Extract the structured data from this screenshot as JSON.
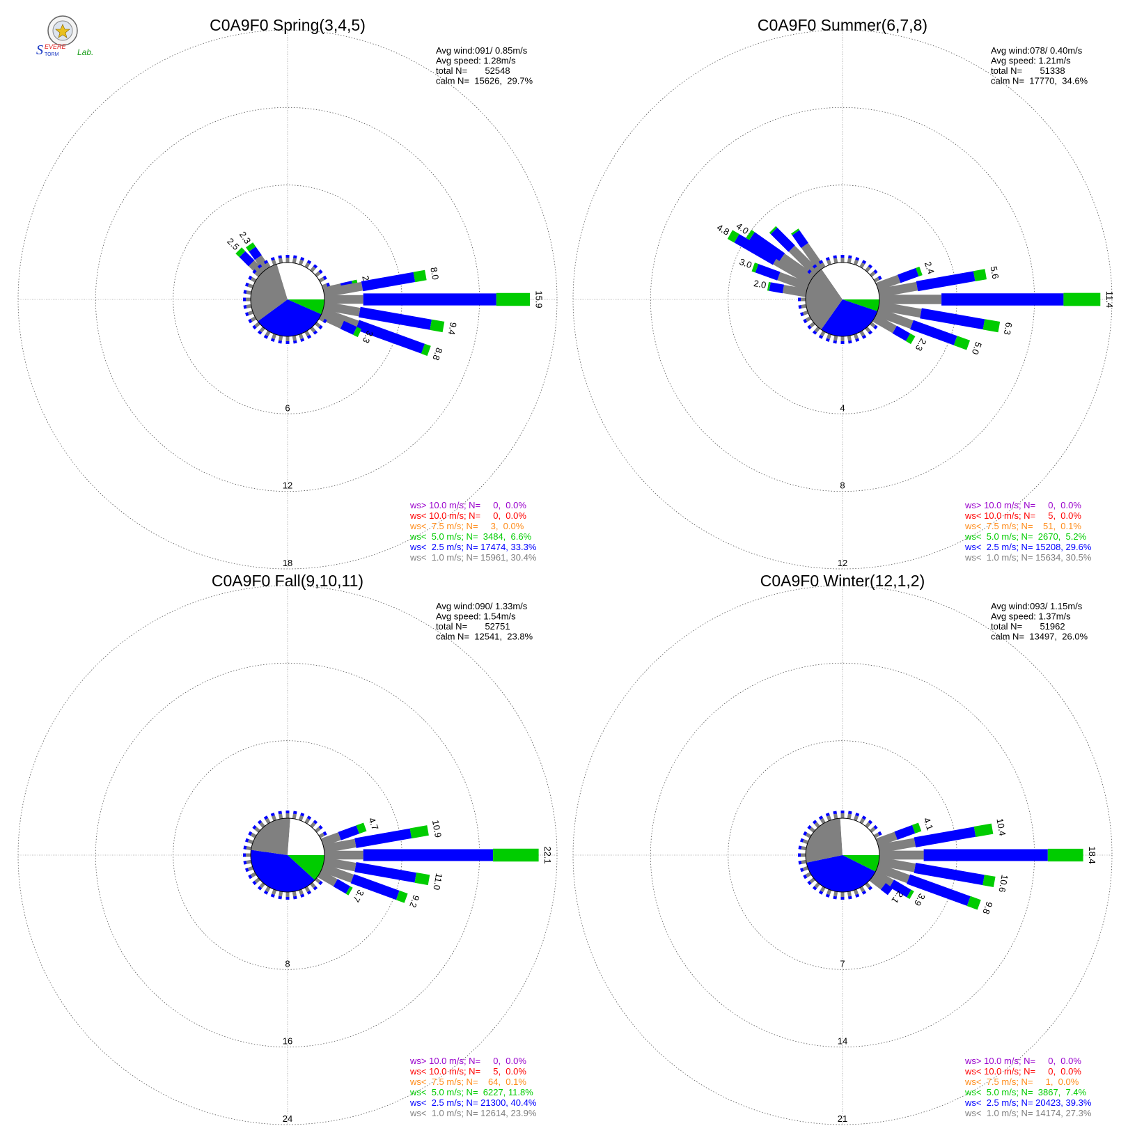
{
  "logo": {
    "text_s": "S",
    "text_severe": "EVERE",
    "text_storm": "TORM",
    "text_lab": "Lab."
  },
  "colors": {
    "calm": "#808080",
    "ws_lt_1": "#808080",
    "ws_lt_2_5": "#0000ff",
    "ws_lt_5": "#00cc00",
    "ws_lt_7_5": "#ff8c1a",
    "ws_lt_10": "#ff0000",
    "ws_gt_10": "#9900cc"
  },
  "chart_data": [
    {
      "type": "windrose",
      "title": "C0A9F0 Spring(3,4,5)",
      "ring_labels": [
        "6",
        "12",
        "18"
      ],
      "rmax": 18,
      "stats": {
        "avg_wind": "Avg wind:091/ 0.85m/s",
        "avg_speed": "Avg speed: 1.28m/s",
        "total": "total N=       52548",
        "calm": "calm N=  15626,  29.7%"
      },
      "calm_pie": {
        "green_pct": 6.6,
        "blue_pct": 33.3,
        "gray_pct": 30.4,
        "calm_pct": 29.7
      },
      "petals": [
        {
          "dir": 77.5,
          "gray": 1.4,
          "blue": 0.9,
          "green": 0.4,
          "label": "2.7"
        },
        {
          "dir": 80,
          "gray": 3.0,
          "blue": 4.1,
          "green": 0.9,
          "label": "8.0"
        },
        {
          "dir": 90,
          "gray": 3.0,
          "blue": 10.3,
          "green": 2.6,
          "label": "15.9"
        },
        {
          "dir": 100,
          "gray": 2.8,
          "blue": 5.6,
          "green": 1.0,
          "label": "9.4"
        },
        {
          "dir": 110,
          "gray": 2.9,
          "blue": 5.4,
          "green": 0.5,
          "label": "8.8"
        },
        {
          "dir": 115,
          "gray": 1.8,
          "blue": 1.1,
          "green": 0.4,
          "label": "3.3"
        },
        {
          "dir": 315,
          "gray": 1.1,
          "blue": 1.0,
          "green": 0.4,
          "label": "2.5"
        },
        {
          "dir": 325,
          "gray": 1.1,
          "blue": 0.8,
          "green": 0.4,
          "label": "2.3"
        }
      ],
      "legend": [
        {
          "key": "ws_gt_10",
          "text": "ws> 10.0 m/s; N=     0,  0.0%"
        },
        {
          "key": "ws_lt_10",
          "text": "ws< 10.0 m/s; N=     0,  0.0%"
        },
        {
          "key": "ws_lt_7_5",
          "text": "ws<  7.5 m/s; N=     3,  0.0%"
        },
        {
          "key": "ws_lt_5",
          "text": "ws<  5.0 m/s; N=  3484,  6.6%"
        },
        {
          "key": "ws_lt_2_5",
          "text": "ws<  2.5 m/s; N= 17474, 33.3%"
        },
        {
          "key": "ws_lt_1",
          "text": "ws<  1.0 m/s; N= 15961, 30.4%"
        }
      ]
    },
    {
      "type": "windrose",
      "title": "C0A9F0 Summer(6,7,8)",
      "ring_labels": [
        "4",
        "8",
        "12"
      ],
      "rmax": 12,
      "stats": {
        "avg_wind": "Avg wind:078/ 0.40m/s",
        "avg_speed": "Avg speed: 1.21m/s",
        "total": "total N=       51338",
        "calm": "calm N=  17770,  34.6%"
      },
      "calm_pie": {
        "green_pct": 5.2,
        "blue_pct": 29.6,
        "gray_pct": 30.5,
        "calm_pct": 34.6
      },
      "petals": [
        {
          "dir": 70,
          "gray": 1.2,
          "blue": 1.0,
          "green": 0.2,
          "label": "2.4"
        },
        {
          "dir": 80,
          "gray": 2.0,
          "blue": 3.0,
          "green": 0.6,
          "label": "5.6"
        },
        {
          "dir": 90,
          "gray": 3.2,
          "blue": 6.3,
          "green": 1.9,
          "label": "11.4"
        },
        {
          "dir": 100,
          "gray": 2.2,
          "blue": 3.3,
          "green": 0.8,
          "label": "6.3"
        },
        {
          "dir": 110,
          "gray": 1.9,
          "blue": 2.4,
          "green": 0.7,
          "label": "5.0"
        },
        {
          "dir": 120,
          "gray": 1.2,
          "blue": 0.8,
          "green": 0.3,
          "label": "2.3"
        },
        {
          "dir": 280,
          "gray": 1.2,
          "blue": 0.7,
          "green": 0.1,
          "label": "2.0"
        },
        {
          "dir": 290,
          "gray": 1.6,
          "blue": 1.2,
          "green": 0.2,
          "label": "3.0"
        },
        {
          "dir": 300,
          "gray": 2.1,
          "blue": 2.3,
          "green": 0.4,
          "label": "4.8"
        },
        {
          "dir": 305,
          "gray": 1.9,
          "blue": 1.9,
          "green": 0.2,
          "label": "4.0"
        },
        {
          "dir": 315,
          "gray": 1.8,
          "blue": 1.3,
          "green": 0.1,
          "label": ""
        },
        {
          "dir": 325,
          "gray": 1.5,
          "blue": 0.8,
          "green": 0.1,
          "label": ""
        }
      ],
      "legend": [
        {
          "key": "ws_gt_10",
          "text": "ws> 10.0 m/s; N=     0,  0.0%"
        },
        {
          "key": "ws_lt_10",
          "text": "ws< 10.0 m/s; N=     5,  0.0%"
        },
        {
          "key": "ws_lt_7_5",
          "text": "ws<  7.5 m/s; N=    51,  0.1%"
        },
        {
          "key": "ws_lt_5",
          "text": "ws<  5.0 m/s; N=  2670,  5.2%"
        },
        {
          "key": "ws_lt_2_5",
          "text": "ws<  2.5 m/s; N= 15208, 29.6%"
        },
        {
          "key": "ws_lt_1",
          "text": "ws<  1.0 m/s; N= 15634, 30.5%"
        }
      ]
    },
    {
      "type": "windrose",
      "title": "C0A9F0 Fall(9,10,11)",
      "ring_labels": [
        "8",
        "16",
        "24"
      ],
      "rmax": 24,
      "stats": {
        "avg_wind": "Avg wind:090/ 1.33m/s",
        "avg_speed": "Avg speed: 1.54m/s",
        "total": "total N=       52751",
        "calm": "calm N=  12541,  23.8%"
      },
      "calm_pie": {
        "green_pct": 11.8,
        "blue_pct": 40.4,
        "gray_pct": 23.9,
        "calm_pct": 23.8
      },
      "petals": [
        {
          "dir": 70,
          "gray": 1.9,
          "blue": 2.0,
          "green": 0.8,
          "label": "4.7"
        },
        {
          "dir": 80,
          "gray": 3.3,
          "blue": 5.8,
          "green": 1.8,
          "label": "10.9"
        },
        {
          "dir": 90,
          "gray": 4.0,
          "blue": 13.4,
          "green": 4.7,
          "label": "22.1"
        },
        {
          "dir": 100,
          "gray": 3.3,
          "blue": 6.3,
          "green": 1.4,
          "label": "11.0"
        },
        {
          "dir": 110,
          "gray": 3.3,
          "blue": 5.0,
          "green": 0.9,
          "label": "9.2"
        },
        {
          "dir": 120,
          "gray": 1.9,
          "blue": 1.5,
          "green": 0.3,
          "label": "3.7"
        }
      ],
      "legend": [
        {
          "key": "ws_gt_10",
          "text": "ws> 10.0 m/s; N=     0,  0.0%"
        },
        {
          "key": "ws_lt_10",
          "text": "ws< 10.0 m/s; N=     5,  0.0%"
        },
        {
          "key": "ws_lt_7_5",
          "text": "ws<  7.5 m/s; N=    64,  0.1%"
        },
        {
          "key": "ws_lt_5",
          "text": "ws<  5.0 m/s; N=  6227, 11.8%"
        },
        {
          "key": "ws_lt_2_5",
          "text": "ws<  2.5 m/s; N= 21300, 40.4%"
        },
        {
          "key": "ws_lt_1",
          "text": "ws<  1.0 m/s; N= 12614, 23.9%"
        }
      ]
    },
    {
      "type": "windrose",
      "title": "C0A9F0 Winter(12,1,2)",
      "ring_labels": [
        "7",
        "14",
        "21"
      ],
      "rmax": 21,
      "stats": {
        "avg_wind": "Avg wind:093/ 1.15m/s",
        "avg_speed": "Avg speed: 1.37m/s",
        "total": "total N=       51962",
        "calm": "calm N=  13497,  26.0%"
      },
      "calm_pie": {
        "green_pct": 7.4,
        "blue_pct": 39.3,
        "gray_pct": 27.3,
        "calm_pct": 26.0
      },
      "petals": [
        {
          "dir": 70,
          "gray": 1.8,
          "blue": 1.7,
          "green": 0.6,
          "label": "4.1"
        },
        {
          "dir": 80,
          "gray": 3.3,
          "blue": 5.5,
          "green": 1.6,
          "label": "10.4"
        },
        {
          "dir": 90,
          "gray": 4.0,
          "blue": 11.2,
          "green": 3.2,
          "label": "18.4"
        },
        {
          "dir": 100,
          "gray": 3.3,
          "blue": 6.3,
          "green": 1.0,
          "label": "10.6"
        },
        {
          "dir": 110,
          "gray": 3.0,
          "blue": 5.8,
          "green": 1.0,
          "label": "9.8"
        },
        {
          "dir": 120,
          "gray": 1.8,
          "blue": 1.8,
          "green": 0.3,
          "label": "3.9"
        },
        {
          "dir": 127.5,
          "gray": 1.3,
          "blue": 0.8,
          "green": 0.0,
          "label": "2.1"
        }
      ],
      "legend": [
        {
          "key": "ws_gt_10",
          "text": "ws> 10.0 m/s; N=     0,  0.0%"
        },
        {
          "key": "ws_lt_10",
          "text": "ws< 10.0 m/s; N=     0,  0.0%"
        },
        {
          "key": "ws_lt_7_5",
          "text": "ws<  7.5 m/s; N=     1,  0.0%"
        },
        {
          "key": "ws_lt_5",
          "text": "ws<  5.0 m/s; N=  3867,  7.4%"
        },
        {
          "key": "ws_lt_2_5",
          "text": "ws<  2.5 m/s; N= 20423, 39.3%"
        },
        {
          "key": "ws_lt_1",
          "text": "ws<  1.0 m/s; N= 14174, 27.3%"
        }
      ]
    }
  ]
}
